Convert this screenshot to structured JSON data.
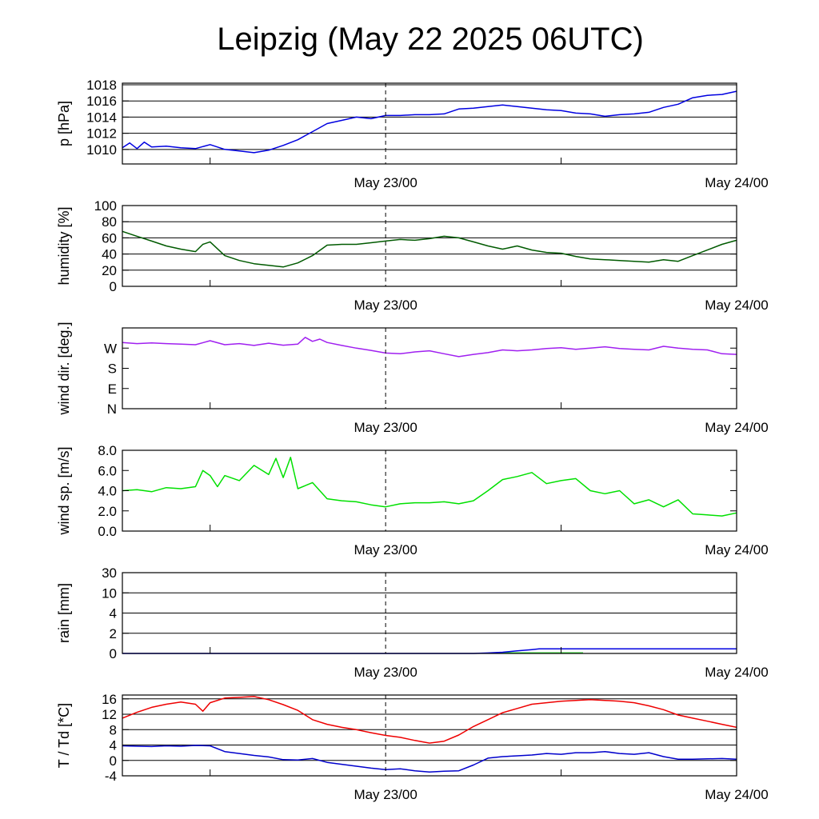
{
  "chart_data": {
    "title": "Leipzig (May 22 2025 06UTC)",
    "x_labels": [
      "May 23/00",
      "May 24/00"
    ],
    "x_range_hours": [
      0,
      42
    ],
    "x_label_hours": [
      18,
      42
    ],
    "panels": [
      {
        "id": "pressure",
        "type": "line",
        "ylabel": "p [hPa]",
        "ylim": [
          1008.2,
          1018.2
        ],
        "yticks": [
          1010,
          1012,
          1014,
          1016,
          1018
        ],
        "ytick_labels": [
          "1010",
          "1012",
          "1014",
          "1016",
          "1018"
        ],
        "grid": [
          1010,
          1012,
          1014,
          1016,
          1018
        ],
        "series": [
          {
            "color": "#0000e0",
            "x": [
              0,
              0.5,
              1,
              1.5,
              2,
              3,
              4,
              5,
              6,
              7,
              8,
              9,
              10,
              11,
              12,
              13,
              14,
              15,
              16,
              17,
              18,
              19,
              20,
              21,
              22,
              23,
              24,
              25,
              26,
              27,
              28,
              29,
              30,
              31,
              32,
              33,
              34,
              35,
              36,
              37,
              38,
              39,
              40,
              41,
              42
            ],
            "y": [
              1010.2,
              1010.8,
              1010.1,
              1010.9,
              1010.3,
              1010.4,
              1010.2,
              1010.1,
              1010.6,
              1010.0,
              1009.8,
              1009.6,
              1009.9,
              1010.5,
              1011.2,
              1012.2,
              1013.2,
              1013.6,
              1014.0,
              1013.8,
              1014.2,
              1014.2,
              1014.3,
              1014.3,
              1014.4,
              1015.0,
              1015.1,
              1015.3,
              1015.5,
              1015.3,
              1015.1,
              1014.9,
              1014.8,
              1014.5,
              1014.4,
              1014.1,
              1014.3,
              1014.4,
              1014.6,
              1015.2,
              1015.6,
              1016.4,
              1016.7,
              1016.8,
              1017.2
            ]
          }
        ]
      },
      {
        "id": "humidity",
        "type": "line",
        "ylabel": "humidity [%]",
        "ylim": [
          0,
          100
        ],
        "yticks": [
          0,
          20,
          40,
          60,
          80,
          100
        ],
        "ytick_labels": [
          "0",
          "20",
          "40",
          "60",
          "80",
          "100"
        ],
        "grid": [
          20,
          40,
          60,
          80
        ],
        "series": [
          {
            "color": "#005a00",
            "x": [
              0,
              1,
              2,
              3,
              4,
              5,
              5.5,
              6,
              7,
              8,
              9,
              10,
              11,
              12,
              13,
              14,
              15,
              16,
              17,
              18,
              19,
              20,
              21,
              22,
              23,
              24,
              25,
              26,
              27,
              28,
              29,
              30,
              31,
              32,
              33,
              34,
              35,
              36,
              37,
              38,
              39,
              40,
              41,
              42
            ],
            "y": [
              68,
              62,
              56,
              50,
              46,
              43,
              52,
              55,
              38,
              32,
              28,
              26,
              24,
              29,
              38,
              51,
              52,
              52,
              54,
              56,
              58,
              57,
              59,
              62,
              60,
              55,
              50,
              46,
              50,
              45,
              42,
              41,
              37,
              34,
              33,
              32,
              31,
              30,
              33,
              31,
              38,
              45,
              52,
              57
            ]
          }
        ]
      },
      {
        "id": "wind_direction",
        "type": "line",
        "ylabel": "wind dir. [deg.]",
        "ylim": [
          0,
          360
        ],
        "yticks": [
          0,
          90,
          180,
          270
        ],
        "ytick_labels": [
          "N",
          "E",
          "S",
          "W"
        ],
        "grid": [],
        "series": [
          {
            "color": "#a020f0",
            "x": [
              0,
              1,
              2,
              3,
              4,
              5,
              6,
              7,
              8,
              9,
              10,
              11,
              12,
              12.5,
              13,
              13.5,
              14,
              15,
              16,
              17,
              18,
              19,
              20,
              21,
              22,
              23,
              24,
              25,
              26,
              27,
              28,
              29,
              30,
              31,
              32,
              33,
              34,
              35,
              36,
              37,
              38,
              39,
              40,
              41,
              42
            ],
            "y": [
              295,
              290,
              293,
              290,
              288,
              285,
              303,
              285,
              290,
              282,
              292,
              283,
              288,
              318,
              300,
              310,
              295,
              282,
              270,
              260,
              248,
              245,
              253,
              258,
              245,
              232,
              242,
              250,
              262,
              258,
              262,
              268,
              272,
              265,
              270,
              276,
              268,
              265,
              262,
              278,
              270,
              265,
              262,
              245,
              242
            ]
          }
        ]
      },
      {
        "id": "wind_speed",
        "type": "line",
        "ylabel": "wind sp. [m/s]",
        "ylim": [
          0,
          8
        ],
        "yticks": [
          0,
          2,
          4,
          6,
          8
        ],
        "ytick_labels": [
          "0.0",
          "2.0",
          "4.0",
          "6.0",
          "8.0"
        ],
        "grid": [],
        "series": [
          {
            "color": "#00e000",
            "x": [
              0,
              1,
              2,
              3,
              4,
              5,
              5.5,
              6,
              6.5,
              7,
              8,
              9,
              10,
              10.5,
              11,
              11.5,
              12,
              13,
              14,
              15,
              16,
              17,
              18,
              19,
              20,
              21,
              22,
              23,
              24,
              25,
              26,
              27,
              28,
              29,
              30,
              31,
              32,
              33,
              34,
              35,
              36,
              37,
              38,
              39,
              40,
              41,
              42
            ],
            "y": [
              4.0,
              4.1,
              3.9,
              4.3,
              4.2,
              4.4,
              6.0,
              5.5,
              4.4,
              5.5,
              5.0,
              6.5,
              5.6,
              7.2,
              5.3,
              7.3,
              4.2,
              4.8,
              3.2,
              3.0,
              2.9,
              2.6,
              2.4,
              2.7,
              2.8,
              2.8,
              2.9,
              2.7,
              3.0,
              4.0,
              5.1,
              5.4,
              5.8,
              4.7,
              5.0,
              5.2,
              4.0,
              3.7,
              4.0,
              2.7,
              3.1,
              2.4,
              3.1,
              1.7,
              1.6,
              1.5,
              1.8
            ]
          }
        ]
      },
      {
        "id": "rain",
        "type": "area+line",
        "ylabel": "rain [mm]",
        "scale": "piecewise",
        "scale_points": [
          [
            0,
            0
          ],
          [
            2,
            1
          ],
          [
            4,
            2
          ],
          [
            10,
            3
          ],
          [
            30,
            4
          ]
        ],
        "yticks": [
          0,
          2,
          4,
          10,
          30
        ],
        "ytick_labels": [
          "0",
          "2",
          "4",
          "10",
          "30"
        ],
        "grid": [
          2,
          4,
          10,
          30
        ],
        "bars": {
          "color": "#33dd33",
          "x_start": 25.5,
          "x_end": 31.5,
          "value": 0.12
        },
        "series": [
          {
            "color": "#0000e0",
            "x": [
              0,
              24,
              25,
              26,
              27,
              28,
              28.5,
              29,
              31,
              42
            ],
            "y": [
              0,
              0,
              0.05,
              0.12,
              0.25,
              0.38,
              0.45,
              0.46,
              0.46,
              0.46
            ]
          }
        ]
      },
      {
        "id": "temperature",
        "type": "line",
        "ylabel": "T / Td [*C]",
        "ylim": [
          -4,
          17
        ],
        "yticks": [
          -4,
          0,
          4,
          8,
          12,
          16
        ],
        "ytick_labels": [
          "-4",
          "0",
          "4",
          "8",
          "12",
          "16"
        ],
        "grid": [
          0,
          4,
          8,
          12,
          16
        ],
        "series": [
          {
            "name": "T",
            "color": "#ee0000",
            "x": [
              0,
              1,
              2,
              3,
              4,
              5,
              5.5,
              6,
              7,
              8,
              9,
              10,
              11,
              12,
              13,
              14,
              15,
              16,
              17,
              18,
              19,
              20,
              21,
              22,
              23,
              24,
              25,
              26,
              27,
              28,
              29,
              30,
              31,
              32,
              33,
              34,
              35,
              36,
              37,
              38,
              39,
              40,
              41,
              42
            ],
            "y": [
              11.0,
              12.5,
              13.8,
              14.6,
              15.2,
              14.6,
              12.8,
              15.0,
              16.2,
              16.4,
              16.6,
              15.8,
              14.5,
              13.0,
              10.6,
              9.4,
              8.6,
              8.0,
              7.2,
              6.5,
              6.0,
              5.2,
              4.5,
              5.0,
              6.6,
              8.8,
              10.6,
              12.4,
              13.5,
              14.6,
              15.0,
              15.4,
              15.6,
              15.8,
              15.6,
              15.4,
              15.0,
              14.2,
              13.2,
              11.8,
              11.0,
              10.2,
              9.4,
              8.6
            ]
          },
          {
            "name": "Td",
            "color": "#0000cc",
            "x": [
              0,
              1,
              2,
              3,
              4,
              5,
              6,
              7,
              8,
              9,
              10,
              11,
              12,
              13,
              14,
              15,
              16,
              17,
              18,
              19,
              20,
              21,
              22,
              23,
              24,
              25,
              26,
              27,
              28,
              29,
              30,
              31,
              32,
              33,
              34,
              35,
              36,
              37,
              38,
              39,
              40,
              41,
              42
            ],
            "y": [
              3.8,
              3.7,
              3.6,
              3.8,
              3.7,
              3.9,
              3.8,
              2.3,
              1.8,
              1.3,
              0.9,
              0.2,
              0.1,
              0.5,
              -0.5,
              -1.0,
              -1.5,
              -2.0,
              -2.4,
              -2.2,
              -2.7,
              -3.0,
              -2.8,
              -2.7,
              -1.2,
              0.6,
              1.0,
              1.2,
              1.4,
              1.8,
              1.6,
              2.0,
              2.0,
              2.3,
              1.8,
              1.6,
              2.0,
              1.0,
              0.3,
              0.3,
              0.4,
              0.5,
              0.3
            ]
          }
        ]
      }
    ]
  }
}
